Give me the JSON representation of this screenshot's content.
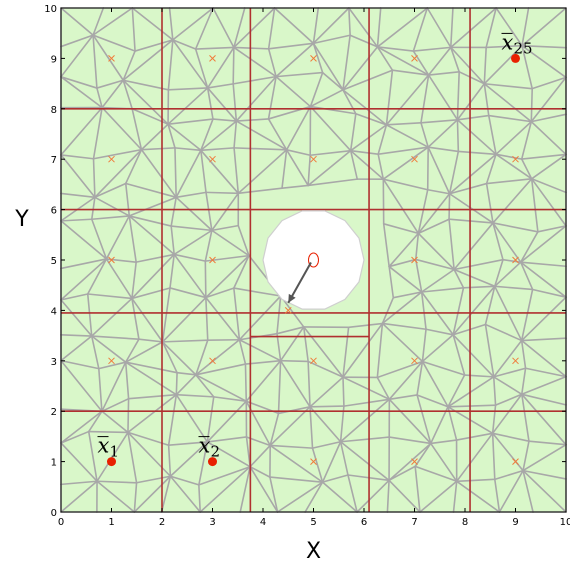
{
  "chart_data": {
    "type": "diagram",
    "xlim": [
      0,
      10
    ],
    "ylim": [
      0,
      10
    ],
    "xlabel": "X",
    "ylabel": "Y",
    "xticks": [
      "0",
      "1",
      "2",
      "3",
      "4",
      "5",
      "6",
      "7",
      "8",
      "9",
      "10"
    ],
    "yticks": [
      "0",
      "1",
      "2",
      "3",
      "4",
      "5",
      "6",
      "7",
      "8",
      "9",
      "10"
    ],
    "colors": {
      "fill": "#d9f7c9",
      "mesh": "#a8a8a8",
      "partition": "#b03030",
      "marker": "#f07a3a",
      "point": "#e82000",
      "hole": "#ffffff"
    },
    "partition_x": [
      2,
      3.75,
      6.1,
      8.1
    ],
    "partition_y": [
      2,
      3.95,
      6,
      8
    ],
    "notch": {
      "x": [
        3.75,
        6.1
      ],
      "y": 3.48
    },
    "hole": {
      "cx": 5.0,
      "cy": 5.0,
      "r": 1.0
    },
    "hole_center_marker": {
      "x": 5.0,
      "y": 5.0
    },
    "arrow": {
      "from": [
        4.95,
        4.95
      ],
      "to": [
        4.5,
        4.15
      ]
    },
    "x_markers": [
      [
        1,
        9
      ],
      [
        3,
        9
      ],
      [
        5,
        9
      ],
      [
        7,
        9
      ],
      [
        1,
        7
      ],
      [
        3,
        7
      ],
      [
        5,
        7
      ],
      [
        7,
        7
      ],
      [
        9,
        7
      ],
      [
        1,
        5
      ],
      [
        3,
        5
      ],
      [
        7,
        5
      ],
      [
        9,
        5
      ],
      [
        1,
        3
      ],
      [
        3,
        3
      ],
      [
        5,
        3
      ],
      [
        7,
        3
      ],
      [
        9,
        3
      ],
      [
        4.5,
        4
      ],
      [
        3,
        1
      ],
      [
        5,
        1
      ],
      [
        7,
        1
      ],
      [
        9,
        1
      ]
    ],
    "points": [
      {
        "x": 1,
        "y": 1,
        "label": "x",
        "sub": "1"
      },
      {
        "x": 3,
        "y": 1,
        "label": "x",
        "sub": "2"
      },
      {
        "x": 9,
        "y": 9,
        "label": "x",
        "sub": "25"
      }
    ]
  }
}
